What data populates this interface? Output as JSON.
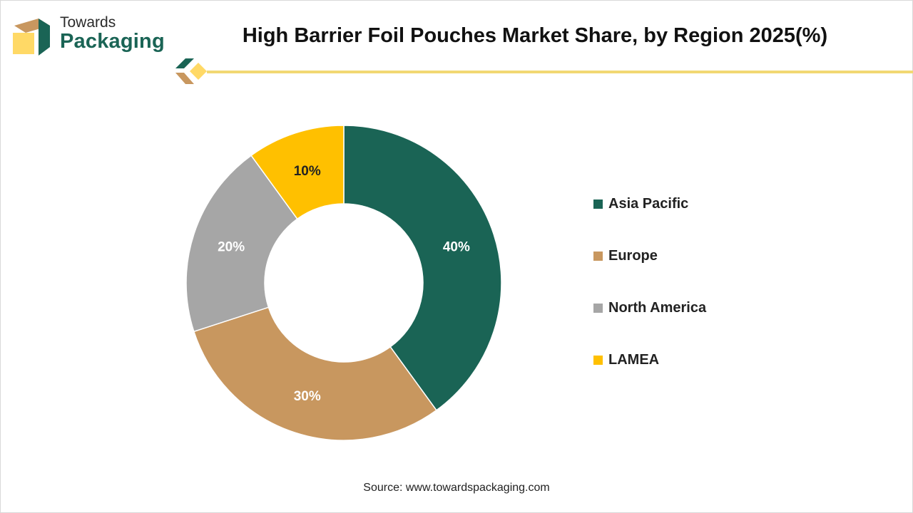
{
  "brand": {
    "line1": "Towards",
    "line2": "Packaging"
  },
  "title": "High Barrier Foil Pouches Market Share, by Region 2025(%)",
  "source": "Source: www.towardspackaging.com",
  "chart_data": {
    "type": "pie",
    "variant": "donut",
    "title": "High Barrier Foil Pouches Market Share, by Region 2025(%)",
    "categories": [
      "Asia Pacific",
      "Europe",
      "North America",
      "LAMEA"
    ],
    "values": [
      40,
      30,
      20,
      10
    ],
    "unit": "%",
    "colors": [
      "#1a6455",
      "#c8975f",
      "#a6a6a6",
      "#ffc000"
    ],
    "data_labels": [
      "40%",
      "30%",
      "20%",
      "10%"
    ],
    "legend_position": "right"
  }
}
